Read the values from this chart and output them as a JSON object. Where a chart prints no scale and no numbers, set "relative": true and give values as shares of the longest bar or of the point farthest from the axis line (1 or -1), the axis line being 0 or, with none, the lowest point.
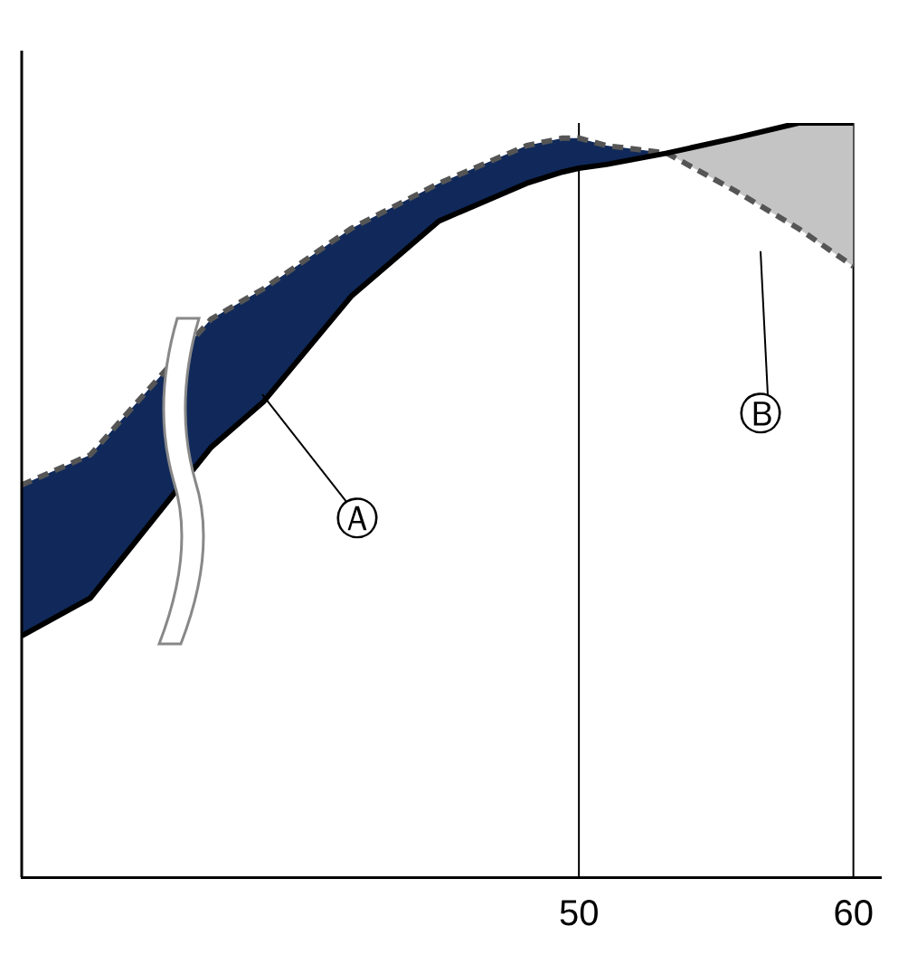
{
  "chart_data": {
    "type": "line",
    "relative": true,
    "x": [
      29.7,
      32.2,
      36.6,
      38.5,
      41.7,
      44.9,
      48.1,
      49.4,
      50,
      51,
      53.2,
      55.7,
      58,
      60
    ],
    "xlim": [
      29.7,
      61
    ],
    "xticks": [
      50,
      60
    ],
    "grid": false,
    "legend": false,
    "marker": "none",
    "series": [
      {
        "color": "#000000",
        "line_style": "solid",
        "values": [
          0.32,
          0.37,
          0.57,
          0.63,
          0.77,
          0.87,
          0.92,
          0.935,
          0.94,
          0.945,
          0.96,
          0.98,
          1.0,
          1.0
        ]
      },
      {
        "color": "#555555",
        "line_style": "dashed",
        "values": [
          0.52,
          0.56,
          0.74,
          0.78,
          0.86,
          0.92,
          0.97,
          0.98,
          0.98,
          0.97,
          0.96,
          0.91,
          0.86,
          0.81
        ]
      },
      {
        "type": "area",
        "color": "#10295a",
        "x": [
          29.7,
          32.2,
          36.6,
          38.5,
          41.7,
          44.9,
          48.1,
          49.4,
          50,
          51,
          53.2
        ],
        "values": [
          0.52,
          0.56,
          0.74,
          0.78,
          0.86,
          0.92,
          0.97,
          0.98,
          0.98,
          0.97,
          0.96
        ]
      },
      {
        "type": "area",
        "color": "#c4c4c4",
        "x": [
          53.2,
          55.7,
          58,
          60
        ],
        "values": [
          0.96,
          0.98,
          1.0,
          1.0
        ]
      }
    ],
    "ref_lines": [
      {
        "axis": "x",
        "value": 50,
        "color": "#000000"
      },
      {
        "axis": "x",
        "value": 60,
        "color": "#000000"
      }
    ],
    "annotations": [
      "Ⓐ",
      "Ⓑ"
    ]
  }
}
